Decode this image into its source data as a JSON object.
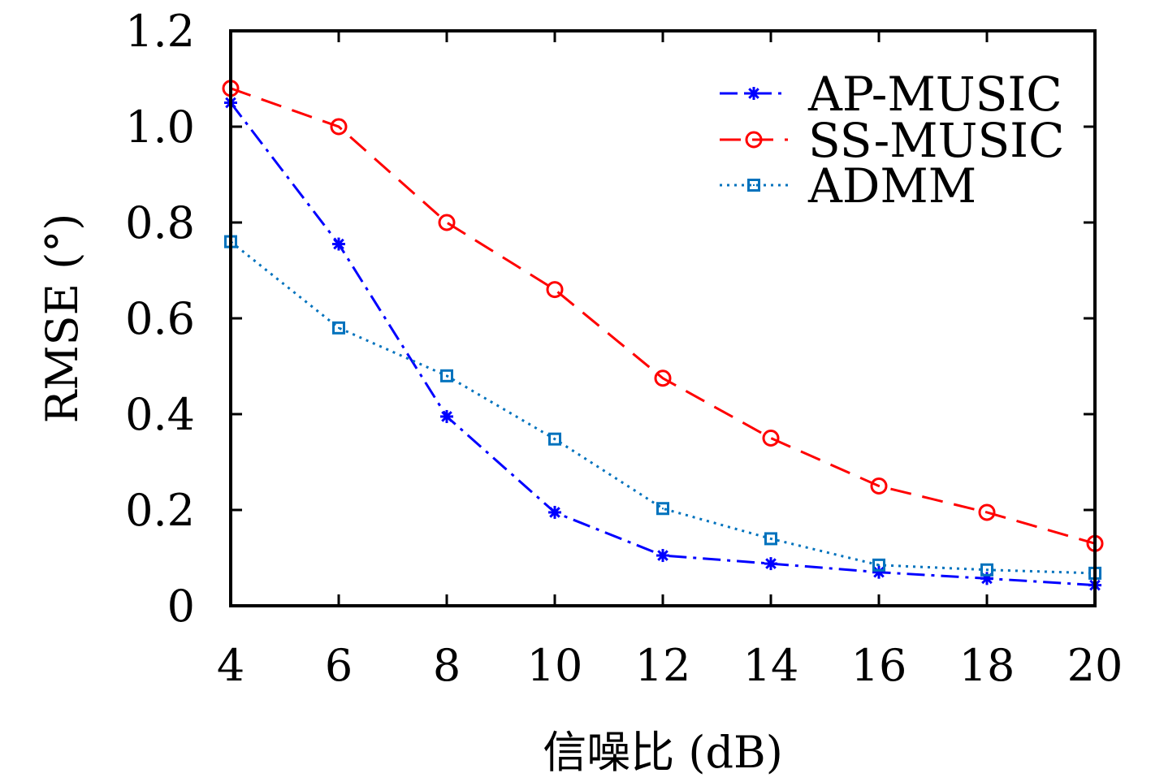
{
  "chart_data": {
    "type": "line",
    "xlabel": "信噪比 (dB)",
    "ylabel": "RMSE (°)",
    "x": [
      4,
      6,
      8,
      10,
      12,
      14,
      16,
      18,
      20
    ],
    "xlim": [
      4,
      20
    ],
    "ylim": [
      0,
      1.2
    ],
    "xticks": [
      "4",
      "6",
      "8",
      "10",
      "12",
      "14",
      "16",
      "18",
      "20"
    ],
    "yticks": [
      "0",
      "0.2",
      "0.4",
      "0.6",
      "0.8",
      "1.0",
      "1.2"
    ],
    "grid": false,
    "legend": "top-right",
    "series": [
      {
        "name": "AP-MUSIC",
        "color": "#0000ff",
        "marker": "asterisk",
        "dash": "dashdot",
        "values": [
          1.05,
          0.755,
          0.395,
          0.195,
          0.105,
          0.088,
          0.07,
          0.057,
          0.043
        ]
      },
      {
        "name": "SS-MUSIC",
        "color": "#ff0000",
        "marker": "circle",
        "dash": "dashed",
        "values": [
          1.08,
          1.0,
          0.8,
          0.66,
          0.475,
          0.35,
          0.25,
          0.195,
          0.13
        ]
      },
      {
        "name": "ADMM",
        "color": "#0072bd",
        "marker": "square",
        "dash": "dotted",
        "values": [
          0.76,
          0.58,
          0.48,
          0.348,
          0.203,
          0.14,
          0.085,
          0.075,
          0.068
        ]
      }
    ]
  }
}
